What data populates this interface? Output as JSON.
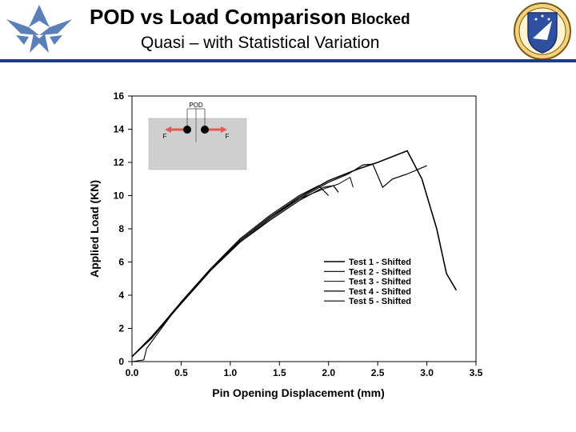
{
  "slide": {
    "title": "POD vs Load Comparison",
    "title_suffix": "Blocked",
    "subtitle": "Quasi – with Statistical Variation",
    "accent_color": "#1e3a8a"
  },
  "logos": {
    "left": "air-force-wings-logo",
    "right": "afrl-shield-emblem"
  },
  "inset": {
    "label_top": "POD",
    "label_left": "F",
    "label_right": "F",
    "arrow_color": "#e05a4f"
  },
  "chart_data": {
    "type": "line",
    "xlabel": "Pin Opening Displacement (mm)",
    "ylabel": "Applied Load (KN)",
    "xlim": [
      0.0,
      3.5
    ],
    "ylim": [
      0,
      16
    ],
    "xticks": [
      "0.0",
      "0.5",
      "1.0",
      "1.5",
      "2.0",
      "2.5",
      "3.0",
      "3.5"
    ],
    "yticks": [
      "0",
      "2",
      "4",
      "6",
      "8",
      "10",
      "12",
      "14",
      "16"
    ],
    "grid": false,
    "legend_position": "lower-right",
    "series": [
      {
        "name": "Test 1 - Shifted",
        "points": [
          [
            0.0,
            0.3
          ],
          [
            0.2,
            1.5
          ],
          [
            0.5,
            3.5
          ],
          [
            0.8,
            5.5
          ],
          [
            1.1,
            7.3
          ],
          [
            1.4,
            8.7
          ],
          [
            1.7,
            9.9
          ],
          [
            2.0,
            10.9
          ],
          [
            2.3,
            11.6
          ],
          [
            2.5,
            12.0
          ],
          [
            2.8,
            12.7
          ],
          [
            2.95,
            11.0
          ],
          [
            3.1,
            8.0
          ],
          [
            3.2,
            5.3
          ],
          [
            3.3,
            4.3
          ]
        ]
      },
      {
        "name": "Test 2 - Shifted",
        "points": [
          [
            0.0,
            0.3
          ],
          [
            0.2,
            1.4
          ],
          [
            0.5,
            3.5
          ],
          [
            0.8,
            5.5
          ],
          [
            1.1,
            7.2
          ],
          [
            1.4,
            8.6
          ],
          [
            1.7,
            9.8
          ],
          [
            2.0,
            10.8
          ],
          [
            2.2,
            11.3
          ],
          [
            2.35,
            11.85
          ],
          [
            2.45,
            11.9
          ],
          [
            2.55,
            10.5
          ],
          [
            2.65,
            11.0
          ],
          [
            2.8,
            11.3
          ],
          [
            3.0,
            11.8
          ]
        ]
      },
      {
        "name": "Test 3 - Shifted",
        "points": [
          [
            0.0,
            0.3
          ],
          [
            0.2,
            1.5
          ],
          [
            0.5,
            3.6
          ],
          [
            0.8,
            5.6
          ],
          [
            1.1,
            7.3
          ],
          [
            1.4,
            8.7
          ],
          [
            1.7,
            9.8
          ],
          [
            1.95,
            10.4
          ],
          [
            2.1,
            10.7
          ],
          [
            2.22,
            11.1
          ],
          [
            2.25,
            10.5
          ]
        ]
      },
      {
        "name": "Test 4 - Shifted",
        "points": [
          [
            0.0,
            0.3
          ],
          [
            0.2,
            1.5
          ],
          [
            0.5,
            3.5
          ],
          [
            0.8,
            5.5
          ],
          [
            1.1,
            7.2
          ],
          [
            1.4,
            8.5
          ],
          [
            1.7,
            9.7
          ],
          [
            1.95,
            10.5
          ],
          [
            2.05,
            10.6
          ],
          [
            2.1,
            10.2
          ]
        ]
      },
      {
        "name": "Test 5 - Shifted",
        "points": [
          [
            0.0,
            0.0
          ],
          [
            0.12,
            0.1
          ],
          [
            0.15,
            0.8
          ],
          [
            0.25,
            1.6
          ],
          [
            0.5,
            3.6
          ],
          [
            0.8,
            5.6
          ],
          [
            1.1,
            7.4
          ],
          [
            1.4,
            8.8
          ],
          [
            1.7,
            10.0
          ],
          [
            1.9,
            10.6
          ],
          [
            2.0,
            10.0
          ]
        ]
      }
    ]
  }
}
